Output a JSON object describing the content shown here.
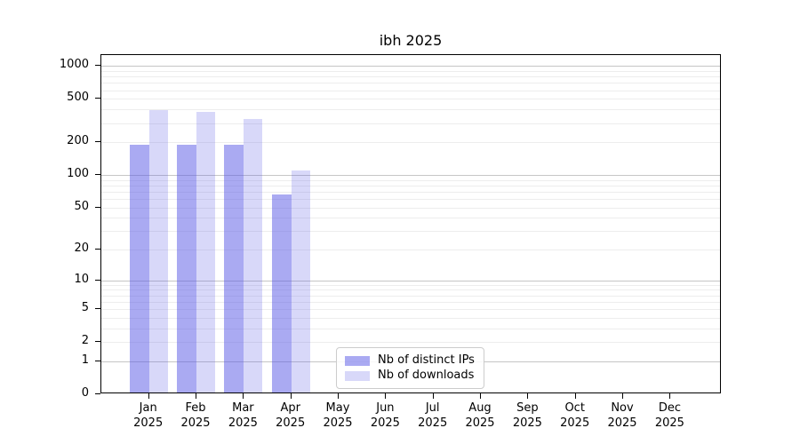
{
  "title": "ibh 2025",
  "colors": {
    "ips_bar": "rgba(85,85,230,0.5)",
    "downloads_bar": "rgba(85,85,230,0.23)",
    "grid_major": "#c6c6c6",
    "grid_minor": "#ededed",
    "axis": "#000000",
    "legend_border": "#cccccc"
  },
  "legend": {
    "items": [
      {
        "key": "distinct-ips",
        "label": "Nb of distinct IPs",
        "color_key": "ips_bar"
      },
      {
        "key": "downloads",
        "label": "Nb of downloads",
        "color_key": "downloads_bar"
      }
    ]
  },
  "chart_data": {
    "type": "bar",
    "title": "ibh 2025",
    "xlabel": "",
    "ylabel": "",
    "scale": "log10(1+y)",
    "grid": "horizontal",
    "legend_position": "bottom-center-right inside plot",
    "categories": [
      "Jan 2025",
      "Feb 2025",
      "Mar 2025",
      "Apr 2025",
      "May 2025",
      "Jun 2025",
      "Jul 2025",
      "Aug 2025",
      "Sep 2025",
      "Oct 2025",
      "Nov 2025",
      "Dec 2025"
    ],
    "series": [
      {
        "name": "Nb of distinct IPs",
        "key": "distinct-ips",
        "color_key": "ips_bar",
        "values": [
          182,
          182,
          182,
          63,
          null,
          null,
          null,
          null,
          null,
          null,
          null,
          null
        ]
      },
      {
        "name": "Nb of downloads",
        "key": "downloads",
        "color_key": "downloads_bar",
        "values": [
          380,
          363,
          315,
          105,
          null,
          null,
          null,
          null,
          null,
          null,
          null,
          null
        ]
      }
    ],
    "y_ticks": [
      0,
      1,
      2,
      5,
      10,
      20,
      50,
      100,
      200,
      500,
      1000
    ],
    "ylim": [
      0,
      1255
    ],
    "y_grid": {
      "major": [
        1,
        10,
        100,
        1000
      ],
      "minor": [
        2,
        3,
        4,
        5,
        6,
        7,
        8,
        9,
        20,
        30,
        40,
        50,
        60,
        70,
        80,
        90,
        200,
        300,
        400,
        500,
        600,
        700,
        800,
        900
      ]
    }
  }
}
